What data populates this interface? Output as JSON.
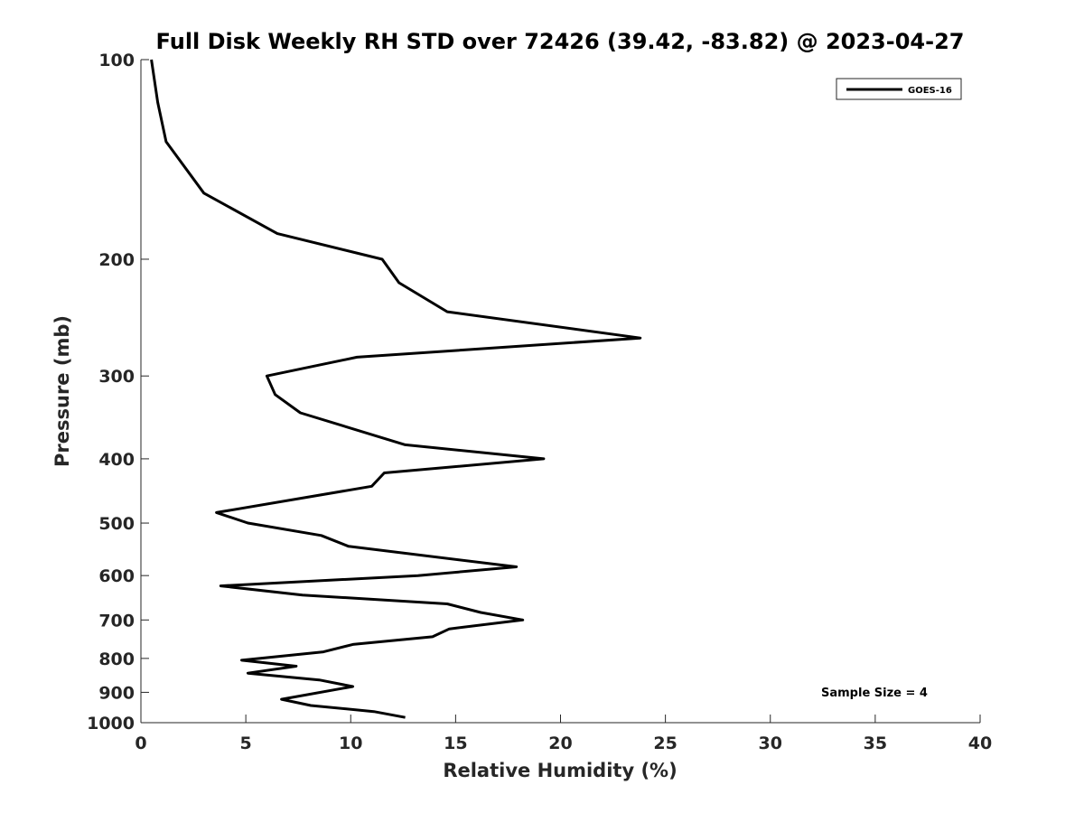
{
  "chart_data": {
    "type": "line",
    "title": "Full Disk Weekly RH STD over 72426 (39.42, -83.82) @ 2023-04-27",
    "xlabel": "Relative Humidity (%)",
    "ylabel": "Pressure (mb)",
    "xlim": [
      0,
      40
    ],
    "ylim": [
      100,
      1000
    ],
    "yscale": "log",
    "y_reversed": true,
    "grid": false,
    "legend_position": "top-right",
    "x_ticks": [
      "0",
      "5",
      "10",
      "15",
      "20",
      "25",
      "30",
      "35",
      "40"
    ],
    "y_ticks": [
      "100",
      "200",
      "300",
      "400",
      "500",
      "600",
      "700",
      "800",
      "900",
      "1000"
    ],
    "series": [
      {
        "name": "GOES-16",
        "color": "#000000",
        "x": [
          0.5,
          0.8,
          1.2,
          3.0,
          6.5,
          11.5,
          12.3,
          14.6,
          23.8,
          10.3,
          6.0,
          6.4,
          7.6,
          12.6,
          19.2,
          11.6,
          11.0,
          3.6,
          5.1,
          8.6,
          9.9,
          17.9,
          13.2,
          3.8,
          7.7,
          14.6,
          16.2,
          18.2,
          14.7,
          13.9,
          10.1,
          8.7,
          4.8,
          7.4,
          5.1,
          8.5,
          10.1,
          6.7,
          8.1,
          11.1,
          12.6
        ],
        "y": [
          100,
          116,
          133,
          159,
          183,
          200,
          217,
          240,
          263,
          281,
          300,
          320,
          341,
          381,
          400,
          420,
          440,
          482,
          500,
          522,
          542,
          582,
          600,
          622,
          642,
          662,
          682,
          700,
          722,
          742,
          762,
          782,
          805,
          822,
          842,
          862,
          882,
          922,
          942,
          962,
          982
        ]
      }
    ],
    "annotation": "Sample Size = 4"
  }
}
